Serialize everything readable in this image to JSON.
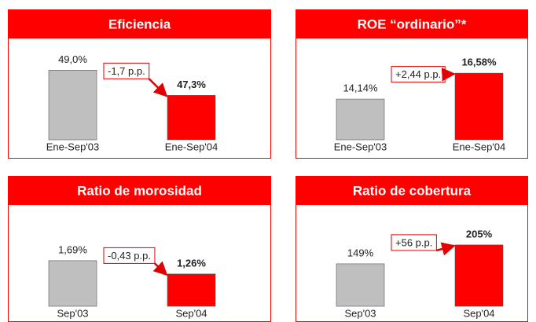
{
  "chart_data": [
    {
      "type": "bar",
      "title": "Eficiencia",
      "categories": [
        "Ene-Sep'03",
        "Ene-Sep'04"
      ],
      "values": [
        49.0,
        47.3
      ],
      "value_labels": [
        "49,0%",
        "47,3%"
      ],
      "colors": [
        "#bfbfbf",
        "#ff0000"
      ],
      "annotation": "-1,7 p.p.",
      "ylim": [
        44.3,
        49.6
      ]
    },
    {
      "type": "bar",
      "title": "ROE “ordinario”*",
      "categories": [
        "Ene-Sep'03",
        "Ene-Sep'04"
      ],
      "values": [
        14.14,
        16.58
      ],
      "value_labels": [
        "14,14%",
        "16,58%"
      ],
      "colors": [
        "#bfbfbf",
        "#ff0000"
      ],
      "annotation": "+2,44 p.p.",
      "ylim": [
        10.3,
        17.7
      ]
    },
    {
      "type": "bar",
      "title": "Ratio de morosidad",
      "categories": [
        "Sep'03",
        "Sep'04"
      ],
      "values": [
        1.69,
        1.26
      ],
      "value_labels": [
        "1,69%",
        "1,26%"
      ],
      "colors": [
        "#bfbfbf",
        "#ff0000"
      ],
      "annotation": "-0,43 p.p.",
      "ylim": [
        0.22,
        2.75
      ]
    },
    {
      "type": "bar",
      "title": "Ratio de cobertura",
      "categories": [
        "Sep'03",
        "Sep'04"
      ],
      "values": [
        149,
        205
      ],
      "value_labels": [
        "149%",
        "205%"
      ],
      "colors": [
        "#bfbfbf",
        "#ff0000"
      ],
      "annotation": "+56 p.p.",
      "ylim": [
        23,
        256
      ]
    }
  ]
}
